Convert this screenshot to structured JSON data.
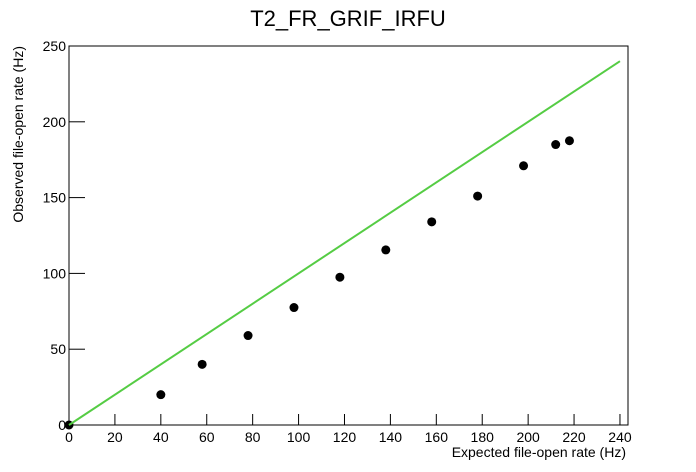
{
  "chart_data": {
    "type": "scatter",
    "title": "T2_FR_GRIF_IRFU",
    "x_label": "Expected file-open rate (Hz)",
    "y_label": "Observed file-open rate (Hz)",
    "series": [
      {
        "type": "scatter",
        "color": "#000000",
        "x": [
          0,
          40,
          58,
          78,
          98,
          118,
          138,
          158,
          178,
          198,
          212,
          218
        ],
        "values": [
          0,
          20,
          40,
          59,
          77.5,
          97.5,
          115.5,
          134,
          151,
          171,
          185,
          187.5
        ]
      },
      {
        "type": "line",
        "color": "#55cc44",
        "x": [
          0,
          240
        ],
        "values": [
          0,
          240
        ]
      }
    ],
    "xlim": [
      0,
      243.5
    ],
    "ylim": [
      0,
      250
    ],
    "xticks": [
      0,
      20,
      40,
      60,
      80,
      100,
      120,
      140,
      160,
      180,
      200,
      220,
      240
    ],
    "yticks": [
      0,
      50,
      100,
      150,
      200,
      250
    ]
  }
}
